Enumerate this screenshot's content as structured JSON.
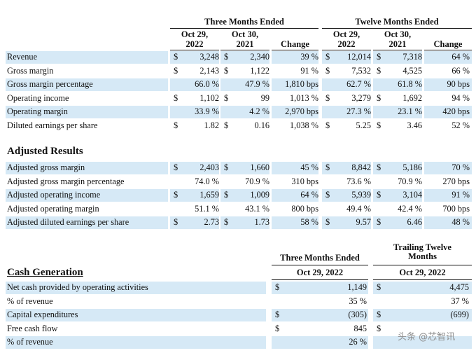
{
  "top_table": {
    "group_headers": [
      "Three Months Ended",
      "Twelve Months Ended"
    ],
    "col_headers": [
      [
        "Oct 29,",
        "2022"
      ],
      [
        "Oct 30,",
        "2021"
      ],
      [
        "",
        "Change"
      ],
      [
        "Oct 29,",
        "2022"
      ],
      [
        "Oct 30,",
        "2021"
      ],
      [
        "",
        "Change"
      ]
    ],
    "rows": [
      {
        "label": "Revenue",
        "c1": "3,248",
        "c2": "2,340",
        "c3": "39 %",
        "c4": "12,014",
        "c5": "7,318",
        "c6": "64 %",
        "d1": "$",
        "d2": "$",
        "d4": "$",
        "d5": "$"
      },
      {
        "label": "Gross margin",
        "c1": "2,143",
        "c2": "1,122",
        "c3": "91 %",
        "c4": "7,532",
        "c5": "4,525",
        "c6": "66 %",
        "d1": "$",
        "d2": "$",
        "d4": "$",
        "d5": "$"
      },
      {
        "label": "Gross margin percentage",
        "c1": "66.0 %",
        "c2": "47.9 %",
        "c3": "1,810 bps",
        "c4": "62.7 %",
        "c5": "61.8 %",
        "c6": "90 bps",
        "d1": "",
        "d2": "",
        "d4": "",
        "d5": ""
      },
      {
        "label": "Operating income",
        "c1": "1,102",
        "c2": "99",
        "c3": "1,013 %",
        "c4": "3,279",
        "c5": "1,692",
        "c6": "94 %",
        "d1": "$",
        "d2": "$",
        "d4": "$",
        "d5": "$"
      },
      {
        "label": "Operating margin",
        "c1": "33.9 %",
        "c2": "4.2 %",
        "c3": "2,970 bps",
        "c4": "27.3 %",
        "c5": "23.1 %",
        "c6": "420 bps",
        "d1": "",
        "d2": "",
        "d4": "",
        "d5": ""
      },
      {
        "label": "Diluted earnings per share",
        "c1": "1.82",
        "c2": "0.16",
        "c3": "1,038 %",
        "c4": "5.25",
        "c5": "3.46",
        "c6": "52 %",
        "d1": "$",
        "d2": "$",
        "d4": "$",
        "d5": "$"
      }
    ]
  },
  "adjusted": {
    "title": "Adjusted Results",
    "rows": [
      {
        "label": "Adjusted gross margin",
        "c1": "2,403",
        "c2": "1,660",
        "c3": "45 %",
        "c4": "8,842",
        "c5": "5,186",
        "c6": "70 %",
        "d1": "$",
        "d2": "$",
        "d4": "$",
        "d5": "$"
      },
      {
        "label": "Adjusted gross margin percentage",
        "c1": "74.0 %",
        "c2": "70.9 %",
        "c3": "310 bps",
        "c4": "73.6 %",
        "c5": "70.9 %",
        "c6": "270 bps",
        "d1": "",
        "d2": "",
        "d4": "",
        "d5": ""
      },
      {
        "label": "Adjusted operating income",
        "c1": "1,659",
        "c2": "1,009",
        "c3": "64 %",
        "c4": "5,939",
        "c5": "3,104",
        "c6": "91 %",
        "d1": "$",
        "d2": "$",
        "d4": "$",
        "d5": "$"
      },
      {
        "label": "Adjusted operating margin",
        "c1": "51.1 %",
        "c2": "43.1 %",
        "c3": "800 bps",
        "c4": "49.4 %",
        "c5": "42.4 %",
        "c6": "700 bps",
        "d1": "",
        "d2": "",
        "d4": "",
        "d5": ""
      },
      {
        "label": "Adjusted diluted earnings per share",
        "c1": "2.73",
        "c2": "1.73",
        "c3": "58 %",
        "c4": "9.57",
        "c5": "6.46",
        "c6": "48 %",
        "d1": "$",
        "d2": "$",
        "d4": "$",
        "d5": "$"
      }
    ]
  },
  "cash": {
    "title": "Cash Generation",
    "header_left_title": "Three Months Ended",
    "header_left_date": "Oct 29, 2022",
    "header_right_title_1": "Trailing Twelve",
    "header_right_title_2": "Months",
    "header_right_date": "Oct 29, 2022",
    "rows": [
      {
        "label": "Net cash provided by operating activities",
        "d1": "$",
        "v1": "1,149",
        "d2": "$",
        "v2": "4,475"
      },
      {
        "label": "% of revenue",
        "d1": "",
        "v1": "35 %",
        "d2": "",
        "v2": "37 %"
      },
      {
        "label": "Capital expenditures",
        "d1": "$",
        "v1": "(305)",
        "d2": "$",
        "v2": "(699)"
      },
      {
        "label": "Free cash flow",
        "d1": "$",
        "v1": "845",
        "d2": "$",
        "v2": ""
      },
      {
        "label": "% of revenue",
        "d1": "",
        "v1": "26 %",
        "d2": "",
        "v2": ""
      }
    ]
  },
  "watermark": "头条 @芯智讯"
}
